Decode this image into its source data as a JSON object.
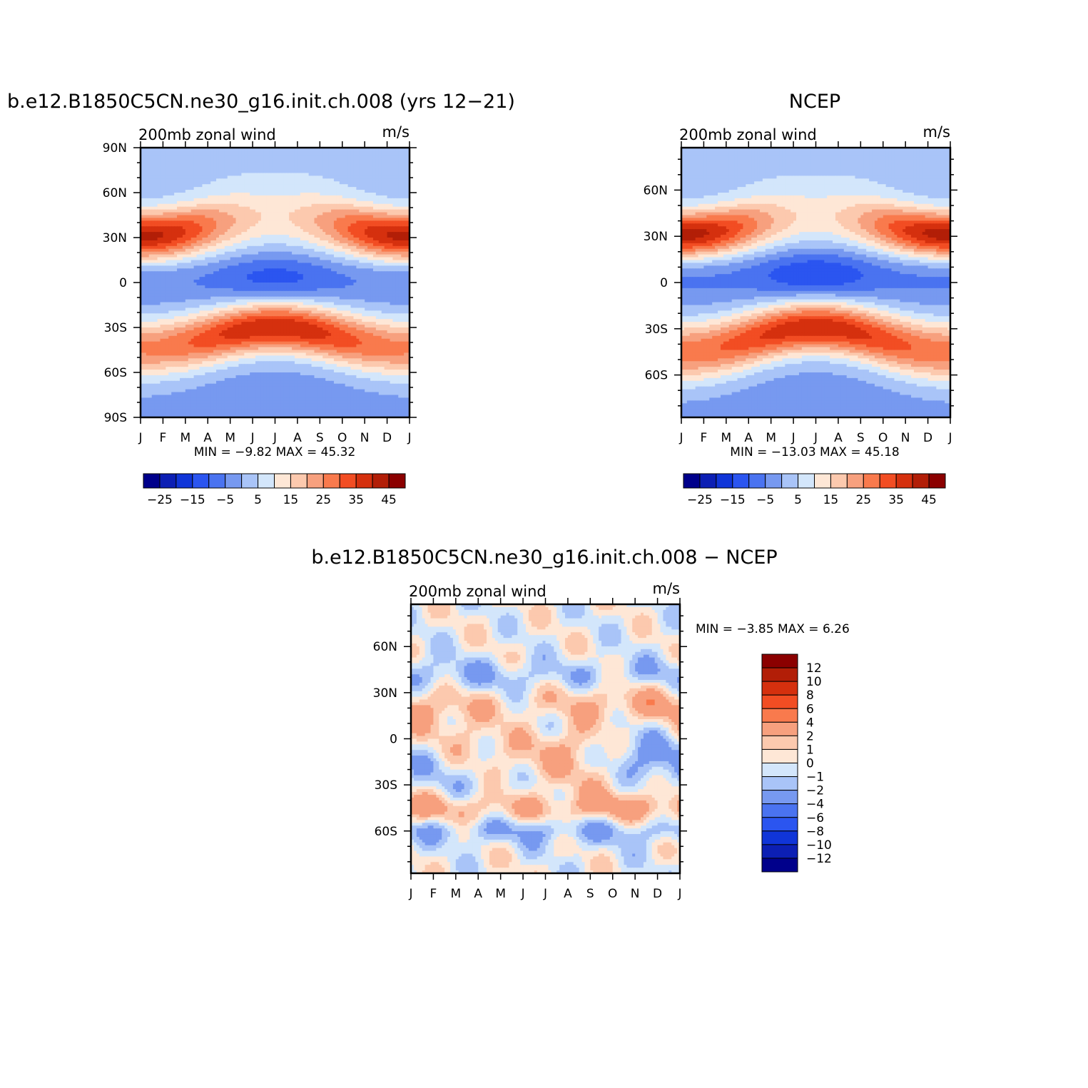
{
  "chart_data": [
    {
      "type": "heatmap",
      "title": "b.e12.B1850C5CN.ne30_g16.init.ch.008 (yrs 12-21)",
      "subtitle": "200mb zonal wind",
      "units": "m/s",
      "x_tick_labels": [
        "J",
        "F",
        "M",
        "A",
        "M",
        "J",
        "J",
        "A",
        "S",
        "O",
        "N",
        "D",
        "J"
      ],
      "y_tick_labels": [
        "90N",
        "60N",
        "30N",
        "0",
        "30S",
        "60S",
        "90S"
      ],
      "y_tick_values": [
        90,
        60,
        30,
        0,
        -30,
        -60,
        -90
      ],
      "ylim": [
        -90,
        90
      ],
      "stats": "MIN =   -9.82  MAX =   45.32",
      "colorbar_levels": [
        -30,
        -25,
        -20,
        -15,
        -10,
        -5,
        0,
        5,
        10,
        15,
        20,
        25,
        30,
        35,
        40,
        45
      ],
      "colorbar_tick_labels": [
        "-25",
        "-15",
        "-5",
        "5",
        "15",
        "25",
        "35",
        "45"
      ],
      "colorbar_orientation": "horizontal",
      "features": {
        "jet_nh": {
          "lat": 30,
          "peak_month": "Jan",
          "max_ms": 45.32
        },
        "jet_sh": {
          "lat": -30,
          "peak_month": "Jul",
          "approx_ms": 40
        },
        "easterly_min": {
          "lat": 2,
          "month": "Jul",
          "min_ms": -9.82
        }
      }
    },
    {
      "type": "heatmap",
      "title": "NCEP",
      "subtitle": "200mb zonal wind",
      "units": "m/s",
      "x_tick_labels": [
        "J",
        "F",
        "M",
        "A",
        "M",
        "J",
        "J",
        "A",
        "S",
        "O",
        "N",
        "D",
        "J"
      ],
      "y_tick_labels": [
        "60N",
        "30N",
        "0",
        "30S",
        "60S"
      ],
      "y_tick_values": [
        60,
        30,
        0,
        -30,
        -60
      ],
      "ylim": [
        -87.5,
        87.5
      ],
      "stats": "MIN =  -13.03  MAX =   45.18",
      "colorbar_levels": [
        -30,
        -25,
        -20,
        -15,
        -10,
        -5,
        0,
        5,
        10,
        15,
        20,
        25,
        30,
        35,
        40,
        45
      ],
      "colorbar_tick_labels": [
        "-25",
        "-15",
        "-5",
        "5",
        "15",
        "25",
        "35",
        "45"
      ],
      "colorbar_orientation": "horizontal",
      "features": {
        "jet_nh": {
          "lat": 30,
          "peak_month": "Jan",
          "max_ms": 45.18
        },
        "jet_sh": {
          "lat": -30,
          "peak_month": "Jul",
          "approx_ms": 40
        },
        "easterly_min": {
          "lat": 5,
          "month": "Jul",
          "min_ms": -13.03
        }
      }
    },
    {
      "type": "heatmap",
      "title": "b.e12.B1850C5CN.ne30_g16.init.ch.008 - NCEP",
      "subtitle": "200mb zonal wind",
      "units": "m/s",
      "x_tick_labels": [
        "J",
        "F",
        "M",
        "A",
        "M",
        "J",
        "J",
        "A",
        "S",
        "O",
        "N",
        "D",
        "J"
      ],
      "y_tick_labels": [
        "60N",
        "30N",
        "0",
        "30S",
        "60S"
      ],
      "y_tick_values": [
        60,
        30,
        0,
        -30,
        -60
      ],
      "ylim": [
        -87.5,
        87.5
      ],
      "stats": "MIN =   -3.85  MAX =    6.26",
      "colorbar_levels": [
        -14,
        -12,
        -10,
        -8,
        -6,
        -4,
        -2,
        -1,
        0,
        1,
        2,
        4,
        6,
        8,
        10,
        12,
        14
      ],
      "colorbar_tick_labels": [
        "12",
        "10",
        "8",
        "6",
        "4",
        "2",
        "1",
        "0",
        "-1",
        "-2",
        "-4",
        "-6",
        "-8",
        "-10",
        "-12"
      ],
      "colorbar_orientation": "vertical"
    }
  ],
  "colors": {
    "diverging_16": [
      "#00008b",
      "#0c1fb4",
      "#1035d8",
      "#2b55f0",
      "#4a73f0",
      "#7799f0",
      "#a9c4f8",
      "#d3e6fb",
      "#fee7d6",
      "#fcc9ae",
      "#f7a07e",
      "#f97a4d",
      "#f24d23",
      "#d5300e",
      "#b21e07",
      "#8b0000"
    ],
    "diff_16": [
      "#00008b",
      "#0c1fb4",
      "#1035d8",
      "#2b55f0",
      "#4a73f0",
      "#7799f0",
      "#a9c4f8",
      "#d3e6fb",
      "#fee7d6",
      "#fcc9ae",
      "#f7a07e",
      "#f97a4d",
      "#f24d23",
      "#d5300e",
      "#b21e07",
      "#8b0000"
    ]
  }
}
